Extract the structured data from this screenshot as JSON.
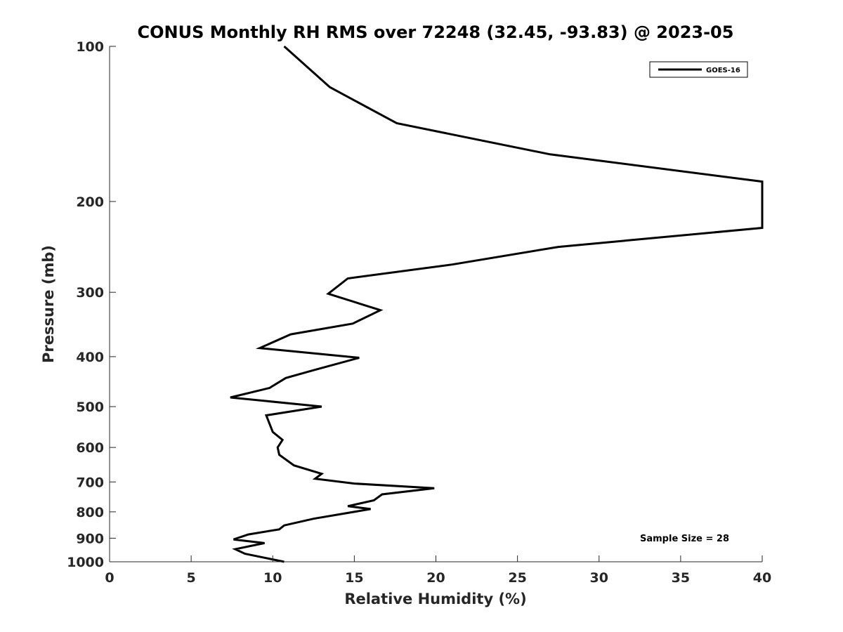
{
  "chart_data": {
    "type": "line",
    "title": "CONUS Monthly RH RMS over 72248 (32.45, -93.83) @ 2023-05",
    "xlabel": "Relative Humidity (%)",
    "ylabel": "Pressure (mb)",
    "xlim": [
      0,
      40
    ],
    "ylim": [
      1000,
      100
    ],
    "y_scale": "log",
    "y_reversed": true,
    "grid": false,
    "legend_position": "top-right",
    "x_ticks": [
      "0",
      "5",
      "10",
      "15",
      "20",
      "25",
      "30",
      "35",
      "40"
    ],
    "y_ticks": [
      "100",
      "200",
      "300",
      "400",
      "500",
      "600",
      "700",
      "800",
      "900",
      "1000"
    ],
    "annotation": "Sample Size = 28",
    "series": [
      {
        "name": "GOES-16",
        "color": "#000000",
        "x": [
          10.7,
          13.5,
          17.6,
          27.0,
          40.0,
          40.0,
          27.5,
          21.0,
          14.6,
          13.4,
          16.6,
          14.9,
          11.1,
          9.2,
          15.3,
          12.5,
          10.8,
          9.8,
          7.4,
          13.0,
          9.6,
          10.0,
          10.6,
          10.3,
          10.4,
          11.3,
          13.0,
          12.6,
          15.0,
          19.9,
          16.7,
          16.2,
          14.6,
          16.0,
          12.5,
          10.7,
          10.4,
          8.5,
          7.6,
          9.5,
          7.7,
          8.3,
          10.7
        ],
        "y": [
          100,
          120,
          141,
          162,
          183,
          225,
          245,
          265,
          282,
          302,
          325,
          345,
          362,
          385,
          402,
          425,
          440,
          460,
          480,
          500,
          520,
          560,
          580,
          600,
          620,
          650,
          675,
          690,
          705,
          720,
          740,
          760,
          780,
          790,
          825,
          850,
          865,
          885,
          905,
          920,
          945,
          965,
          1000
        ]
      }
    ]
  }
}
